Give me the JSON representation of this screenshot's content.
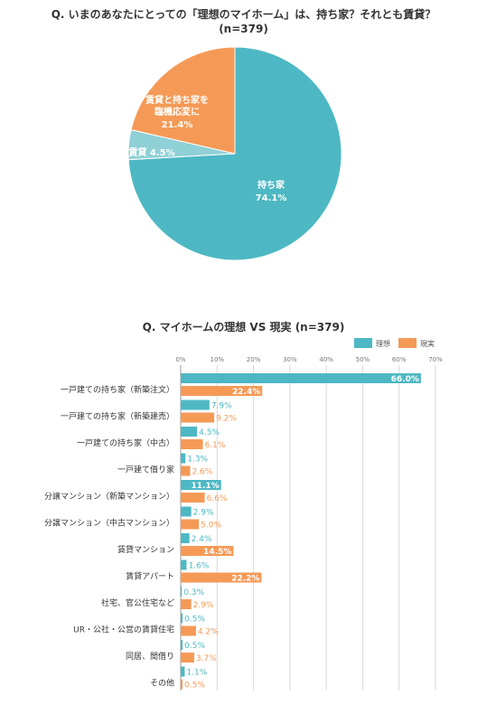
{
  "chart_data": [
    {
      "type": "pie",
      "title": "Q. いまのあなたにとっての「理想のマイホーム」は、持ち家？それとも賃貸？",
      "subtitle": "(n=379)",
      "slices": [
        {
          "label": "持ち家",
          "value": 74.1,
          "value_label": "74.1%",
          "color": "#4db8c3"
        },
        {
          "label": "賃貸",
          "value": 4.5,
          "value_label": "4.5%",
          "color": "#8fd0d6"
        },
        {
          "label": "賃貸と持ち家を\n臨機応変に",
          "value": 21.4,
          "value_label": "21.4%",
          "color": "#f59a56"
        }
      ]
    },
    {
      "type": "bar",
      "orientation": "horizontal",
      "title": "Q. マイホームの理想 VS 現実 (n=379)",
      "xlim": [
        0,
        70
      ],
      "x_ticks": [
        "0%",
        "10%",
        "20%",
        "30%",
        "40%",
        "50%",
        "60%",
        "70%"
      ],
      "grid": true,
      "legend_position": "top-right",
      "categories": [
        "一戸建ての持ち家（新築注文）",
        "一戸建ての持ち家（新築建売）",
        "一戸建ての持ち家（中古）",
        "一戸建て借り家",
        "分譲マンション（新築マンション）",
        "分譲マンション（中古マンション）",
        "賃貸マンション",
        "賃貸アパート",
        "社宅、官公住宅など",
        "UR・公社・公営の賃貸住宅",
        "同居、間借り",
        "その他"
      ],
      "series": [
        {
          "name": "理想",
          "color": "#4db8c3",
          "values": [
            66.0,
            7.9,
            4.5,
            1.3,
            11.1,
            2.9,
            2.4,
            1.6,
            0.3,
            0.5,
            0.5,
            1.1
          ],
          "labels": [
            "66.0%",
            "7.9%",
            "4.5%",
            "1.3%",
            "11.1%",
            "2.9%",
            "2.4%",
            "1.6%",
            "0.3%",
            "0.5%",
            "0.5%",
            "1.1%"
          ]
        },
        {
          "name": "現実",
          "color": "#f59a56",
          "values": [
            22.4,
            9.2,
            6.1,
            2.6,
            6.6,
            5.0,
            14.5,
            22.2,
            2.9,
            4.2,
            3.7,
            0.5
          ],
          "labels": [
            "22.4%",
            "9.2%",
            "6.1%",
            "2.6%",
            "6.6%",
            "5.0%",
            "14.5%",
            "22.2%",
            "2.9%",
            "4.2%",
            "3.7%",
            "0.5%"
          ]
        }
      ]
    }
  ]
}
